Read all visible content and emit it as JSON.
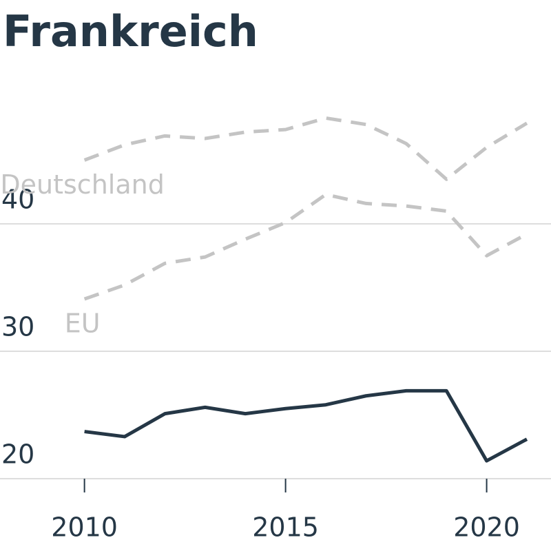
{
  "chart_data": {
    "type": "line",
    "title": "Frankreich",
    "x": [
      2010,
      2011,
      2012,
      2013,
      2014,
      2015,
      2016,
      2017,
      2018,
      2019,
      2020,
      2021
    ],
    "series": [
      {
        "name": "Deutschland",
        "color": "#c4c4c4",
        "dashed": true,
        "values": [
          45.0,
          46.2,
          46.9,
          46.7,
          47.2,
          47.4,
          48.3,
          47.8,
          46.3,
          43.5,
          46.0,
          47.9
        ]
      },
      {
        "name": "EU",
        "color": "#c4c4c4",
        "dashed": true,
        "values": [
          34.1,
          35.2,
          36.9,
          37.4,
          38.8,
          40.1,
          42.3,
          41.6,
          41.4,
          41.0,
          37.5,
          39.2
        ]
      },
      {
        "color": "#253746",
        "dashed": false,
        "values": [
          23.7,
          23.3,
          25.1,
          25.6,
          25.1,
          25.5,
          25.8,
          26.5,
          26.9,
          26.9,
          21.4,
          23.1
        ]
      }
    ],
    "xlim": [
      2007.9,
      2021.6
    ],
    "xticks": [
      2010,
      2015,
      2020
    ],
    "ylim": [
      20,
      50
    ],
    "yticks": [
      20,
      30,
      40
    ],
    "grid": true
  }
}
